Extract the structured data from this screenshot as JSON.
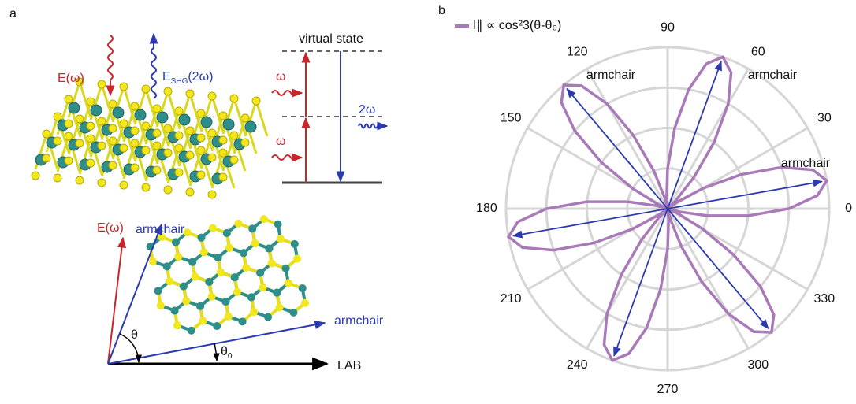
{
  "panel_a": {
    "label": "a",
    "top_left": {
      "incident": "E(ω)",
      "shg": "E",
      "shg_sub": "SHG",
      "shg_tail": "(2ω)"
    },
    "energy": {
      "virtual": "virtual state",
      "omega_1": "ω",
      "omega_2": "ω",
      "two_omega": "2ω"
    },
    "bottom": {
      "field": "E(ω)",
      "armchair_1": "armchair",
      "armchair_2": "armchair",
      "theta": "θ",
      "theta0": "θ",
      "theta0_sub": "0",
      "lab": "LAB"
    }
  },
  "chart_data": {
    "type": "polar",
    "panel_label": "b",
    "theta": [
      0,
      5,
      10,
      15,
      20,
      25,
      30,
      35,
      40,
      45,
      50,
      55,
      60,
      65,
      70,
      75,
      80,
      85,
      90,
      95,
      100,
      105,
      110,
      115,
      120,
      125,
      130,
      135,
      140,
      145,
      150,
      155,
      160,
      165,
      170,
      175,
      180,
      185,
      190,
      195,
      200,
      205,
      210,
      215,
      220,
      225,
      230,
      235,
      240,
      245,
      250,
      255,
      260,
      265,
      270,
      275,
      280,
      285,
      290,
      295,
      300,
      305,
      310,
      315,
      320,
      325,
      330,
      335,
      340,
      345,
      350,
      355
    ],
    "series": [
      {
        "name": "I∥ ∝ cos²3(θ-θ₀)",
        "color": "#a87ab8",
        "values": [
          0.75,
          0.93,
          1,
          0.93,
          0.75,
          0.5,
          0.25,
          0.07,
          0,
          0.07,
          0.25,
          0.5,
          0.75,
          0.93,
          1,
          0.93,
          0.75,
          0.5,
          0.25,
          0.07,
          0,
          0.07,
          0.25,
          0.5,
          0.75,
          0.93,
          1,
          0.93,
          0.75,
          0.5,
          0.25,
          0.07,
          0,
          0.07,
          0.25,
          0.5,
          0.75,
          0.93,
          1,
          0.93,
          0.75,
          0.5,
          0.25,
          0.07,
          0,
          0.07,
          0.25,
          0.5,
          0.75,
          0.93,
          1,
          0.93,
          0.75,
          0.5,
          0.25,
          0.07,
          0,
          0.07,
          0.25,
          0.5,
          0.75,
          0.93,
          1,
          0.93,
          0.75,
          0.5,
          0.25,
          0.07,
          0,
          0.07,
          0.25,
          0.5
        ]
      }
    ],
    "arrow_angles": [
      10,
      70,
      130,
      190,
      250,
      310
    ],
    "arrow_color": "#2b3ab0",
    "annotations": [
      "armchair",
      "armchair",
      "armchair"
    ],
    "rlim": [
      0,
      1
    ],
    "rticks": [
      0.25,
      0.5,
      0.75,
      1
    ],
    "thetaticks": [
      0,
      30,
      60,
      90,
      120,
      150,
      180,
      210,
      240,
      270,
      300,
      330
    ]
  }
}
